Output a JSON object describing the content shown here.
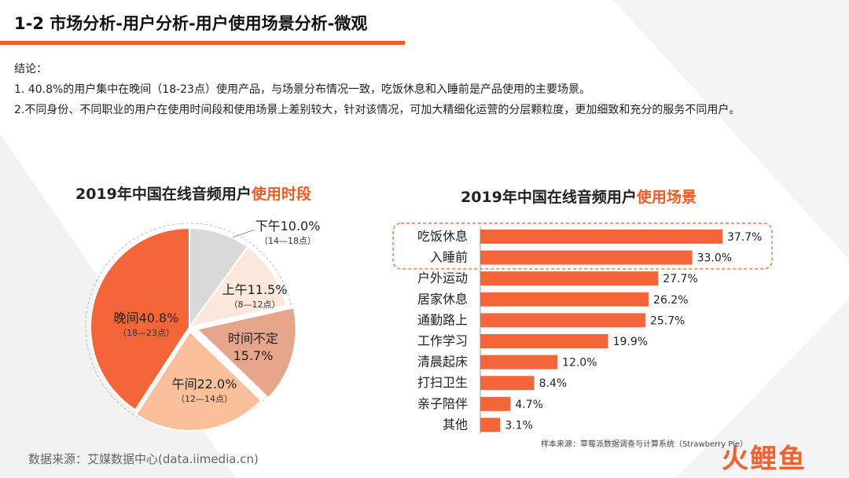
{
  "header": {
    "title": "1-2 市场分析-用户分析-用户使用场景分析-微观"
  },
  "conclusion": {
    "heading": "结论：",
    "line1": "1. 40.8%的用户集中在晚间（18-23点）使用产品，与场景分布情况一致，吃饭休息和入睡前是产品使用的主要场景。",
    "line2": "2.不同身份、不同职业的用户在使用时间段和使用场景上差别较大，针对该情况，可加大精细化运营的分层颗粒度，更加细致和充分的服务不同用户。"
  },
  "colors": {
    "accent": "#f15a24",
    "bar": "#f4663a",
    "evening": "#f4663a",
    "noon": "#f9bf9a",
    "undetermined": "#e7a58c",
    "morning": "#fde7dc",
    "afternoon": "#d9d9d9"
  },
  "chart_data": [
    {
      "type": "pie",
      "title_prefix": "2019年中国在线音频用户",
      "title_highlight": "使用时段",
      "slices": [
        {
          "label": "下午10.0%",
          "sub": "（14—18点）",
          "value": 10.0,
          "color": "#d9d9d9"
        },
        {
          "label": "上午11.5%",
          "sub": "（8—12点）",
          "value": 11.5,
          "color": "#fde7dc"
        },
        {
          "label": "时间不定",
          "label2": "15.7%",
          "value": 15.7,
          "color": "#e7a58c"
        },
        {
          "label": "午间22.0%",
          "sub": "（12—14点）",
          "value": 22.0,
          "color": "#f9bf9a"
        },
        {
          "label": "晚间40.8%",
          "sub": "（18—23点）",
          "value": 40.8,
          "color": "#f4663a"
        }
      ]
    },
    {
      "type": "bar",
      "orientation": "horizontal",
      "title_prefix": "2019年中国在线音频用户",
      "title_highlight": "使用场景",
      "categories": [
        "吃饭休息",
        "入睡前",
        "户外运动",
        "居家休息",
        "通勤路上",
        "工作学习",
        "清晨起床",
        "打扫卫生",
        "亲子陪伴",
        "其他"
      ],
      "values": [
        37.7,
        33.0,
        27.7,
        26.2,
        25.7,
        19.9,
        12.0,
        8.4,
        4.7,
        3.1
      ],
      "value_labels": [
        "37.7%",
        "33.0%",
        "27.7%",
        "26.2%",
        "25.7%",
        "19.9%",
        "12.0%",
        "8.4%",
        "4.7%",
        "3.1%"
      ],
      "highlighted": [
        "吃饭休息",
        "入睡前"
      ]
    }
  ],
  "footer": {
    "source": "数据来源：艾媒数据中心(data.iimedia.cn)",
    "sample": "样本来源：草莓派数据调查与计算系统（Strawberry Pie）",
    "logo": "火鲤鱼"
  }
}
